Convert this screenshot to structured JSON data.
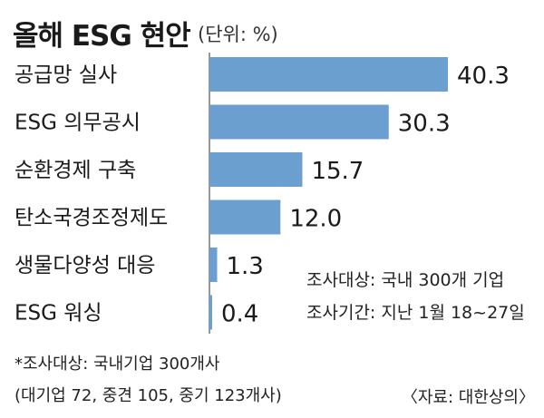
{
  "chart_data": {
    "type": "bar",
    "orientation": "horizontal",
    "title": "올해 ESG 현안",
    "unit": "(단위: %)",
    "categories": [
      "공급망 실사",
      "ESG 의무공시",
      "순환경제 구축",
      "탄소국경조정제도",
      "생물다양성 대응",
      "ESG 워싱"
    ],
    "values": [
      40.3,
      30.3,
      15.7,
      12.0,
      1.3,
      0.4
    ],
    "value_labels": [
      "40.3",
      "30.3",
      "15.7",
      "12.0",
      "1.3",
      "0.4"
    ],
    "bar_color": "#6a9fcf",
    "axis_color": "#777777",
    "xlim": [
      0,
      40.3
    ],
    "grid": false,
    "legend": "none"
  },
  "survey": {
    "target": "조사대상: 국내 300개 기업",
    "period": "조사기간: 지난 1월 18~27일"
  },
  "footnote": {
    "line1": "*조사대상: 국내기업 300개사",
    "line2": "(대기업 72, 중견 105, 중기 123개사)"
  },
  "source": "〈자료: 대한상의〉"
}
